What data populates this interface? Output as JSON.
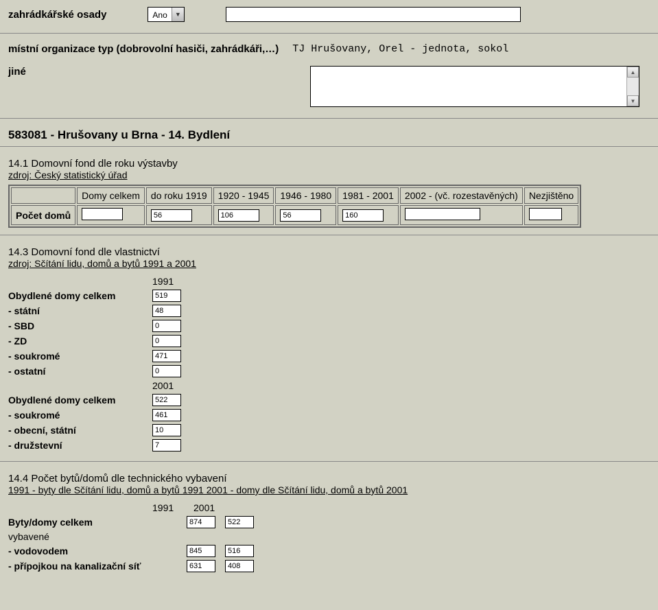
{
  "top": {
    "zahradkarske_label": "zahrádkářské osady",
    "dropdown_value": "Ano",
    "organizace_label": "místní organizace typ (dobrovolní hasiči, zahrádkáři,…)",
    "organizace_value": "TJ Hrušovany, Orel - jednota, sokol",
    "jine_label": "jiné"
  },
  "pagetitle": "583081 - Hrušovany u Brna - 14. Bydlení",
  "s141": {
    "heading": "14.1 Domovní fond dle roku výstavby",
    "source": "zdroj: Český statistický úřad",
    "headers": [
      "Domy celkem",
      "do roku 1919",
      "1920 - 1945",
      "1946 - 1980",
      "1981 - 2001",
      "2002 - (vč. rozestavěných)",
      "Nezjištěno"
    ],
    "rowlabel": "Počet domů",
    "values": [
      "",
      "56",
      "106",
      "56",
      "160",
      "",
      ""
    ]
  },
  "s143": {
    "heading": "14.3 Domovní fond dle vlastnictví",
    "source": "zdroj: Sčítání lidu, domů a bytů 1991 a 2001",
    "year1": "1991",
    "year2": "2001",
    "rows1991": [
      {
        "label": "Obydlené domy celkem",
        "value": "519"
      },
      {
        "label": "- státní",
        "value": "48"
      },
      {
        "label": "- SBD",
        "value": "0"
      },
      {
        "label": "- ZD",
        "value": "0"
      },
      {
        "label": "- soukromé",
        "value": "471"
      },
      {
        "label": "- ostatní",
        "value": "0"
      }
    ],
    "rows2001": [
      {
        "label": "Obydlené domy celkem",
        "value": "522"
      },
      {
        "label": "- soukromé",
        "value": "461"
      },
      {
        "label": "- obecní, státní",
        "value": "10"
      },
      {
        "label": "- družstevní",
        "value": "7"
      }
    ]
  },
  "s144": {
    "heading": "14.4 Počet bytů/domů dle technického vybavení",
    "source": "1991 - byty dle Sčítání lidu, domů a bytů 1991 2001 - domy dle Sčítání lidu, domů a bytů 2001",
    "year1": "1991",
    "year2": "2001",
    "rows": [
      {
        "label": "Byty/domy celkem",
        "v1": "874",
        "v2": "522"
      },
      {
        "label": "vybavené",
        "v1": "",
        "v2": ""
      },
      {
        "label": "- vodovodem",
        "v1": "845",
        "v2": "516"
      },
      {
        "label": "- přípojkou na kanalizační síť",
        "v1": "631",
        "v2": "408"
      }
    ]
  }
}
